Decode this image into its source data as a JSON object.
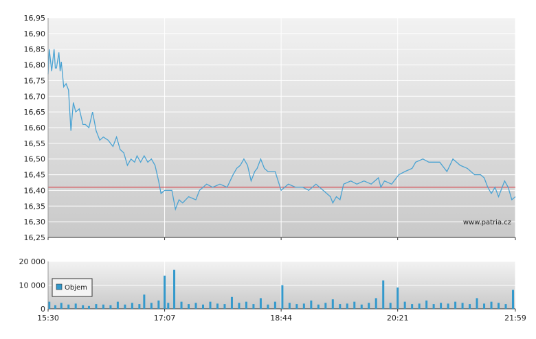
{
  "chart_data": [
    {
      "type": "line",
      "watermark": "www.patria.cz",
      "xlim": [
        "15:30",
        "21:59"
      ],
      "ylim": [
        16.25,
        16.95
      ],
      "yticks": [
        {
          "value": 16.25,
          "label": "16,25"
        },
        {
          "value": 16.3,
          "label": "16,30"
        },
        {
          "value": 16.35,
          "label": "16,35"
        },
        {
          "value": 16.4,
          "label": "16,40"
        },
        {
          "value": 16.45,
          "label": "16,45"
        },
        {
          "value": 16.5,
          "label": "16,50"
        },
        {
          "value": 16.55,
          "label": "16,55"
        },
        {
          "value": 16.6,
          "label": "16,60"
        },
        {
          "value": 16.65,
          "label": "16,65"
        },
        {
          "value": 16.7,
          "label": "16,70"
        },
        {
          "value": 16.75,
          "label": "16,75"
        },
        {
          "value": 16.8,
          "label": "16,80"
        },
        {
          "value": 16.85,
          "label": "16,85"
        },
        {
          "value": 16.9,
          "label": "16,90"
        },
        {
          "value": 16.95,
          "label": "16,95"
        }
      ],
      "grid": true,
      "reference_line": {
        "value": 16.41,
        "color": "#d9363e"
      },
      "color": "#4aa3d3",
      "x": [
        "15:30",
        "15:31",
        "15:33",
        "15:35",
        "15:36",
        "15:37",
        "15:39",
        "15:40",
        "15:41",
        "15:43",
        "15:45",
        "15:47",
        "15:49",
        "15:51",
        "15:53",
        "15:56",
        "15:59",
        "16:01",
        "16:04",
        "16:07",
        "16:10",
        "16:13",
        "16:16",
        "16:20",
        "16:24",
        "16:27",
        "16:30",
        "16:33",
        "16:36",
        "16:39",
        "16:42",
        "16:44",
        "16:47",
        "16:50",
        "16:53",
        "16:56",
        "16:59",
        "17:02",
        "17:04",
        "17:07",
        "17:13",
        "17:16",
        "17:19",
        "17:22",
        "17:27",
        "17:33",
        "17:36",
        "17:39",
        "17:42",
        "17:47",
        "17:53",
        "17:59",
        "18:04",
        "18:07",
        "18:10",
        "18:13",
        "18:16",
        "18:19",
        "18:22",
        "18:24",
        "18:27",
        "18:30",
        "18:33",
        "18:39",
        "18:44",
        "18:50",
        "18:56",
        "19:02",
        "19:07",
        "19:13",
        "19:19",
        "19:25",
        "19:27",
        "19:30",
        "19:33",
        "19:36",
        "19:42",
        "19:47",
        "19:53",
        "19:59",
        "20:05",
        "20:07",
        "20:10",
        "20:16",
        "20:22",
        "20:27",
        "20:33",
        "20:36",
        "20:42",
        "20:47",
        "20:56",
        "21:02",
        "21:07",
        "21:13",
        "21:19",
        "21:25",
        "21:30",
        "21:33",
        "21:36",
        "21:39",
        "21:42",
        "21:45",
        "21:48",
        "21:50",
        "21:53",
        "21:56",
        "21:59"
      ],
      "values": [
        16.77,
        16.85,
        16.78,
        16.85,
        16.79,
        16.79,
        16.84,
        16.78,
        16.81,
        16.73,
        16.74,
        16.72,
        16.59,
        16.68,
        16.65,
        16.66,
        16.61,
        16.61,
        16.6,
        16.65,
        16.59,
        16.56,
        16.57,
        16.56,
        16.54,
        16.57,
        16.53,
        16.52,
        16.48,
        16.5,
        16.49,
        16.51,
        16.49,
        16.51,
        16.49,
        16.5,
        16.48,
        16.43,
        16.39,
        16.4,
        16.4,
        16.34,
        16.37,
        16.36,
        16.38,
        16.37,
        16.4,
        16.41,
        16.42,
        16.41,
        16.42,
        16.41,
        16.45,
        16.47,
        16.48,
        16.5,
        16.48,
        16.43,
        16.46,
        16.47,
        16.5,
        16.47,
        16.46,
        16.46,
        16.4,
        16.42,
        16.41,
        16.41,
        16.4,
        16.42,
        16.4,
        16.38,
        16.36,
        16.38,
        16.37,
        16.42,
        16.43,
        16.42,
        16.43,
        16.42,
        16.44,
        16.41,
        16.43,
        16.42,
        16.45,
        16.46,
        16.47,
        16.49,
        16.5,
        16.49,
        16.49,
        16.46,
        16.5,
        16.48,
        16.47,
        16.45,
        16.45,
        16.44,
        16.41,
        16.39,
        16.41,
        16.38,
        16.41,
        16.43,
        16.41,
        16.37,
        16.38
      ]
    },
    {
      "type": "bar",
      "xlim": [
        "15:30",
        "21:59"
      ],
      "xticks": [
        "15:30",
        "17:07",
        "18:44",
        "20:21",
        "21:59"
      ],
      "ylim": [
        0,
        20000
      ],
      "yticks": [
        0,
        {
          "value": 10000,
          "label": "10 000"
        },
        {
          "value": 20000,
          "label": "20 000"
        }
      ],
      "grid": true,
      "legend": "top-left",
      "series": [
        {
          "name": "Objem",
          "color": "#3399cc",
          "x": [
            "15:31",
            "15:36",
            "15:41",
            "15:47",
            "15:53",
            "15:59",
            "16:04",
            "16:10",
            "16:16",
            "16:22",
            "16:28",
            "16:34",
            "16:40",
            "16:46",
            "16:50",
            "16:56",
            "17:02",
            "17:07",
            "17:10",
            "17:15",
            "17:21",
            "17:27",
            "17:33",
            "17:39",
            "17:45",
            "17:51",
            "17:57",
            "18:03",
            "18:09",
            "18:15",
            "18:21",
            "18:27",
            "18:33",
            "18:39",
            "18:45",
            "18:51",
            "18:57",
            "19:03",
            "19:09",
            "19:15",
            "19:21",
            "19:27",
            "19:33",
            "19:39",
            "19:45",
            "19:51",
            "19:57",
            "20:03",
            "20:09",
            "20:15",
            "20:21",
            "20:27",
            "20:33",
            "20:39",
            "20:45",
            "20:51",
            "20:57",
            "21:03",
            "21:09",
            "21:15",
            "21:21",
            "21:27",
            "21:33",
            "21:39",
            "21:45",
            "21:51",
            "21:57"
          ],
          "values": [
            3000,
            1500,
            2500,
            1800,
            2200,
            1500,
            1200,
            2000,
            1800,
            1500,
            3000,
            1800,
            2500,
            2000,
            6000,
            2500,
            3500,
            14000,
            2500,
            16500,
            3000,
            2000,
            2500,
            1800,
            3000,
            2200,
            2000,
            5000,
            2500,
            3000,
            2000,
            4500,
            1800,
            3000,
            10000,
            2500,
            2000,
            2200,
            3500,
            1800,
            2500,
            4000,
            2000,
            2200,
            3000,
            1800,
            2500,
            4500,
            12000,
            2500,
            9000,
            3000,
            2000,
            2200,
            3500,
            2000,
            2500,
            2200,
            3000,
            2500,
            2000,
            4500,
            2200,
            3000,
            2500,
            2000,
            8000
          ]
        }
      ]
    }
  ]
}
